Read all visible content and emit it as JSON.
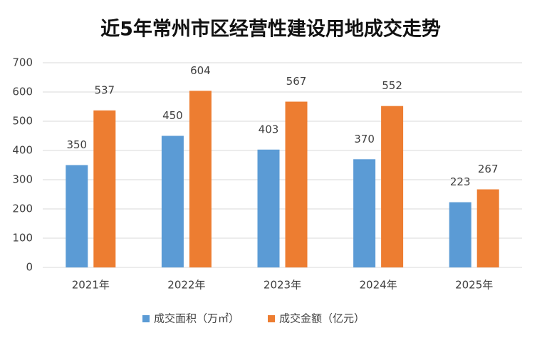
{
  "chart_data": {
    "type": "bar",
    "title": "近5年常州市区经营性建设用地成交走势",
    "categories": [
      "2021年",
      "2022年",
      "2023年",
      "2024年",
      "2025年"
    ],
    "series": [
      {
        "name": "成交面积（万㎡）",
        "color": "#5b9bd5",
        "values": [
          350,
          450,
          403,
          370,
          223
        ]
      },
      {
        "name": "成交金额（亿元）",
        "color": "#ed7d31",
        "values": [
          537,
          604,
          567,
          552,
          267
        ]
      }
    ],
    "ylim": [
      0,
      700
    ],
    "yticks": [
      0,
      100,
      200,
      300,
      400,
      500,
      600,
      700
    ],
    "grid": true,
    "legend": "bottom"
  }
}
